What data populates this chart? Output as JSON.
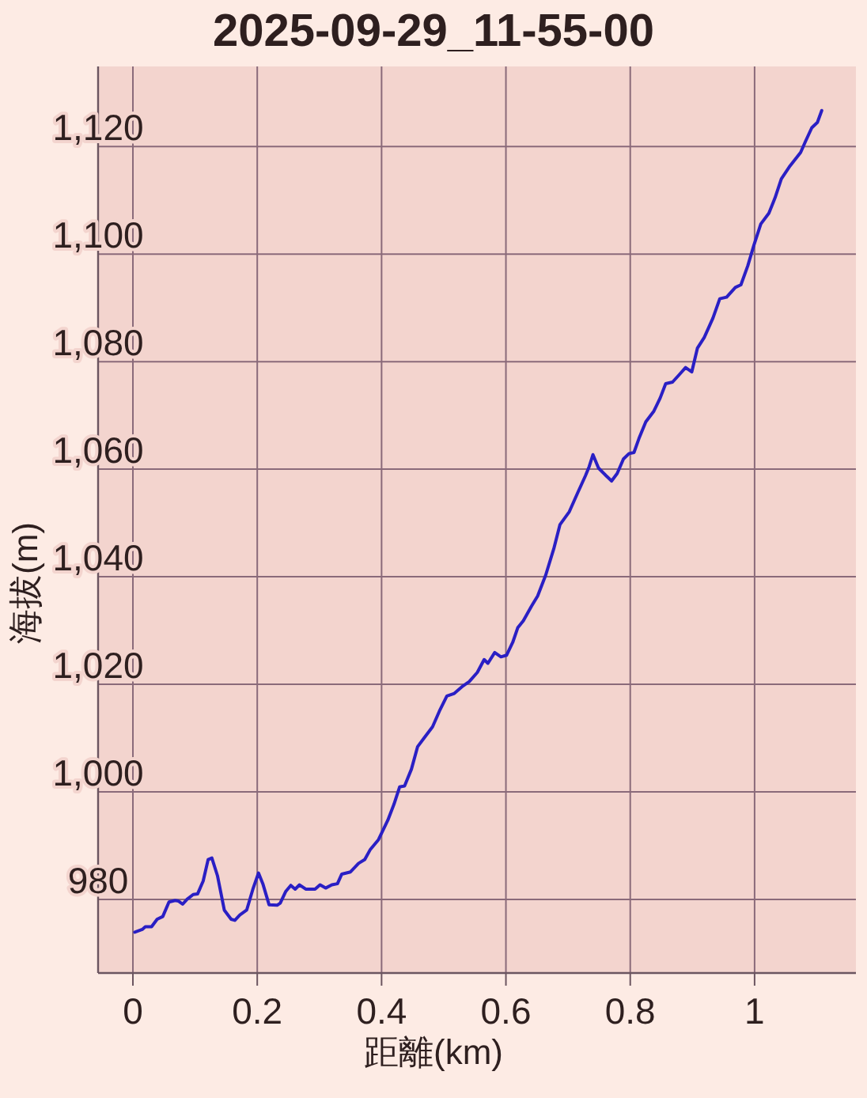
{
  "chart_data": {
    "type": "line",
    "title": "2025-09-29_11-55-00",
    "xlabel": "距離(km)",
    "ylabel": "海拔(m)",
    "x": [
      0.003,
      0.015,
      0.02,
      0.03,
      0.039,
      0.048,
      0.058,
      0.068,
      0.073,
      0.08,
      0.087,
      0.097,
      0.104,
      0.113,
      0.121,
      0.127,
      0.136,
      0.147,
      0.158,
      0.164,
      0.172,
      0.183,
      0.193,
      0.202,
      0.209,
      0.219,
      0.232,
      0.237,
      0.246,
      0.254,
      0.261,
      0.268,
      0.278,
      0.293,
      0.301,
      0.31,
      0.32,
      0.329,
      0.336,
      0.35,
      0.363,
      0.373,
      0.382,
      0.395,
      0.41,
      0.42,
      0.429,
      0.437,
      0.448,
      0.458,
      0.469,
      0.482,
      0.493,
      0.505,
      0.517,
      0.531,
      0.541,
      0.554,
      0.565,
      0.571,
      0.582,
      0.592,
      0.601,
      0.611,
      0.619,
      0.628,
      0.641,
      0.651,
      0.664,
      0.677,
      0.687,
      0.702,
      0.715,
      0.728,
      0.734,
      0.74,
      0.749,
      0.761,
      0.77,
      0.779,
      0.789,
      0.798,
      0.806,
      0.814,
      0.825,
      0.838,
      0.848,
      0.857,
      0.868,
      0.879,
      0.889,
      0.899,
      0.908,
      0.919,
      0.933,
      0.944,
      0.955,
      0.969,
      0.978,
      0.989,
      0.999,
      1.01,
      1.023,
      1.033,
      1.043,
      1.057,
      1.074,
      1.082,
      1.092,
      1.101,
      1.108
    ],
    "series": [
      {
        "color": "#2a1fc4",
        "values": [
          973.9,
          974.4,
          974.9,
          974.9,
          976.3,
          976.8,
          979.5,
          979.8,
          979.7,
          979.1,
          980.0,
          980.9,
          981.0,
          983.4,
          987.4,
          987.7,
          984.4,
          978.0,
          976.3,
          976.1,
          977.1,
          978.0,
          981.9,
          984.9,
          982.9,
          979.0,
          978.9,
          979.3,
          981.5,
          982.6,
          981.9,
          982.7,
          981.9,
          981.9,
          982.7,
          982.1,
          982.7,
          982.9,
          984.7,
          985.1,
          986.7,
          987.4,
          989.3,
          991.1,
          994.7,
          997.7,
          1000.9,
          1001.1,
          1004.2,
          1008.4,
          1010.1,
          1012.1,
          1015.0,
          1017.8,
          1018.3,
          1019.7,
          1020.5,
          1022.2,
          1024.6,
          1023.9,
          1025.9,
          1025.1,
          1025.4,
          1027.8,
          1030.5,
          1031.8,
          1034.5,
          1036.4,
          1040.3,
          1045.2,
          1049.7,
          1052.1,
          1055.5,
          1058.8,
          1060.5,
          1062.7,
          1060.2,
          1058.8,
          1057.8,
          1059.2,
          1061.9,
          1062.9,
          1063.1,
          1065.7,
          1068.8,
          1070.8,
          1073.2,
          1075.9,
          1076.2,
          1077.6,
          1078.9,
          1078.1,
          1082.5,
          1084.5,
          1088.1,
          1091.7,
          1092.0,
          1093.8,
          1094.3,
          1097.8,
          1101.7,
          1105.6,
          1107.6,
          1110.5,
          1114.0,
          1116.4,
          1118.9,
          1121.0,
          1123.5,
          1124.5,
          1126.7
        ]
      }
    ],
    "xlim": [
      -0.056,
      1.163
    ],
    "ylim": [
      966.3,
      1134.9
    ],
    "xticks": [
      0,
      0.2,
      0.4,
      0.6,
      0.8,
      1
    ],
    "yticks": [
      {
        "value": 980,
        "label": "980"
      },
      {
        "value": 1000,
        "label": "1,000"
      },
      {
        "value": 1020,
        "label": "1,020"
      },
      {
        "value": 1040,
        "label": "1,040"
      },
      {
        "value": 1060,
        "label": "1,060"
      },
      {
        "value": 1080,
        "label": "1,080"
      },
      {
        "value": 1100,
        "label": "1,100"
      },
      {
        "value": 1120,
        "label": "1,120"
      }
    ],
    "grid": true
  }
}
